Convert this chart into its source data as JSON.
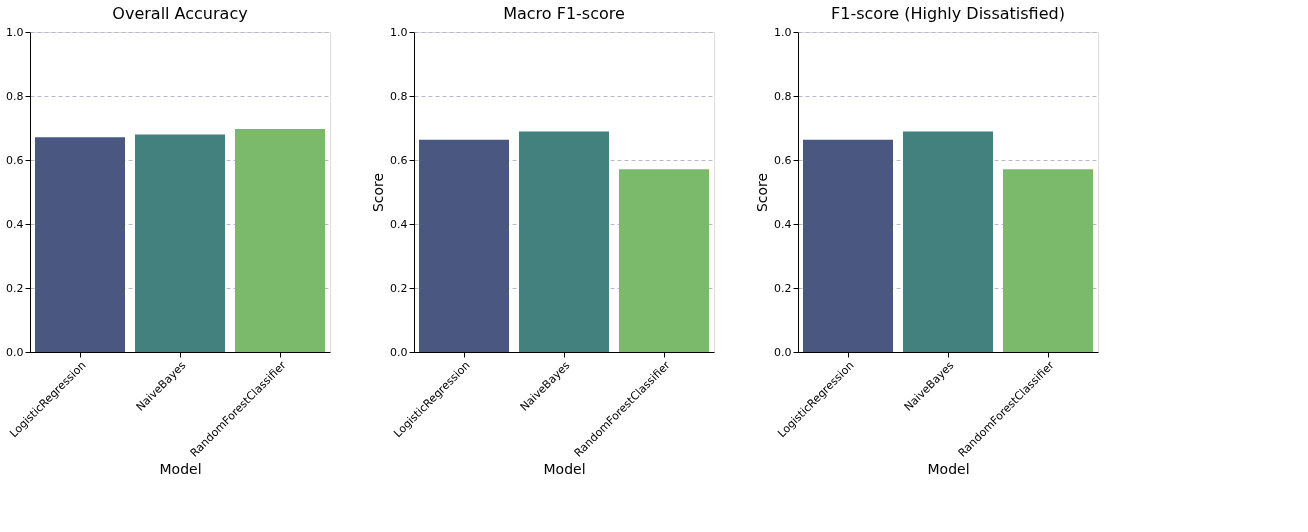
{
  "chart_data": [
    {
      "type": "bar",
      "title": "Overall Accuracy",
      "xlabel": "Model",
      "categories": [
        "LogisticRegression",
        "NaiveBayes",
        "RandomForestClassifier"
      ],
      "values": [
        0.671,
        0.68,
        0.697
      ],
      "colors": [
        "#4a5780",
        "#43817f",
        "#7aba6a"
      ],
      "ylim": [
        0,
        1
      ],
      "yticks": [
        {
          "value": 0,
          "label": "0.0"
        },
        {
          "value": 0.2,
          "label": "0.2"
        },
        {
          "value": 0.4,
          "label": "0.4"
        },
        {
          "value": 0.6,
          "label": "0.6"
        },
        {
          "value": 0.8,
          "label": "0.8"
        },
        {
          "value": 1,
          "label": "1.0"
        }
      ],
      "grid": "y"
    },
    {
      "type": "bar",
      "title": "Macro F1-score",
      "xlabel": "Model",
      "ylabel": "Score",
      "categories": [
        "LogisticRegression",
        "NaiveBayes",
        "RandomForestClassifier"
      ],
      "values": [
        0.663,
        0.689,
        0.571
      ],
      "colors": [
        "#4a5780",
        "#43817f",
        "#7aba6a"
      ],
      "ylim": [
        0,
        1
      ],
      "yticks": [
        {
          "value": 0,
          "label": "0.0"
        },
        {
          "value": 0.2,
          "label": "0.2"
        },
        {
          "value": 0.4,
          "label": "0.4"
        },
        {
          "value": 0.6,
          "label": "0.6"
        },
        {
          "value": 0.8,
          "label": "0.8"
        },
        {
          "value": 1,
          "label": "1.0"
        }
      ],
      "grid": "y"
    },
    {
      "type": "bar",
      "title": "F1-score (Highly Dissatisfied)",
      "xlabel": "Model",
      "ylabel": "Score",
      "categories": [
        "LogisticRegression",
        "NaiveBayes",
        "RandomForestClassifier"
      ],
      "values": [
        0.663,
        0.689,
        0.571
      ],
      "colors": [
        "#4a5780",
        "#43817f",
        "#7aba6a"
      ],
      "ylim": [
        0,
        1
      ],
      "yticks": [
        {
          "value": 0,
          "label": "0.0"
        },
        {
          "value": 0.2,
          "label": "0.2"
        },
        {
          "value": 0.4,
          "label": "0.4"
        },
        {
          "value": 0.6,
          "label": "0.6"
        },
        {
          "value": 0.8,
          "label": "0.8"
        },
        {
          "value": 1,
          "label": "1.0"
        }
      ],
      "grid": "y"
    }
  ]
}
